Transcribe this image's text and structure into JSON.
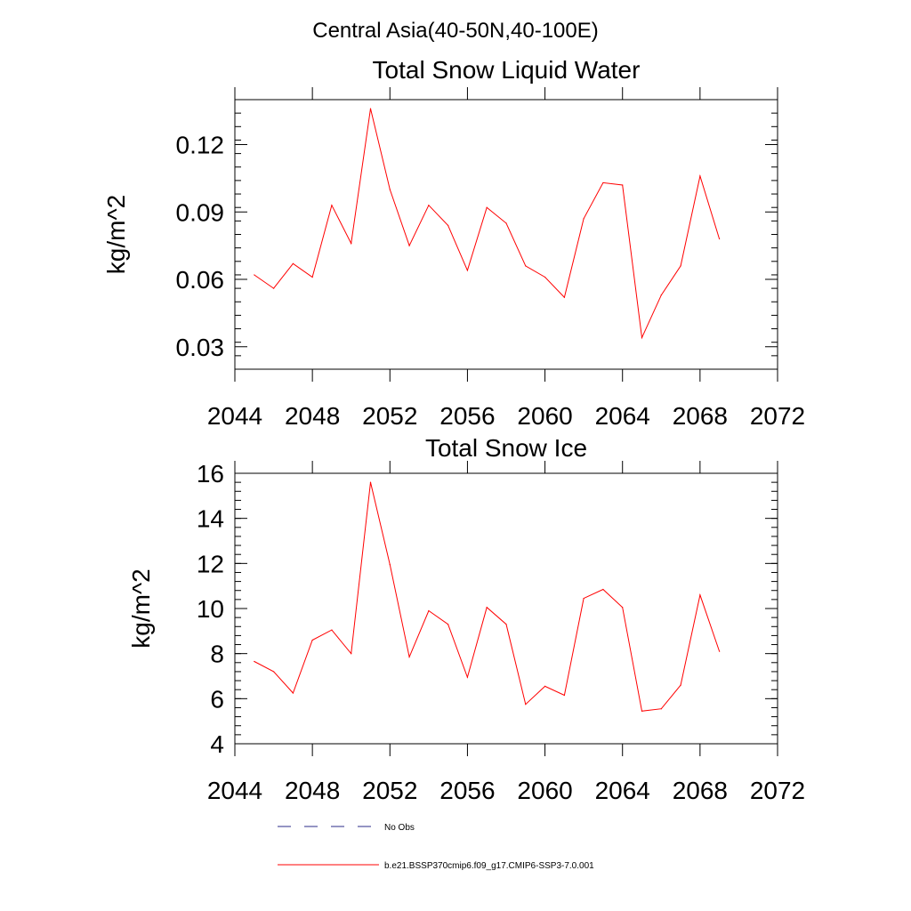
{
  "figure": {
    "title": "Central Asia(40-50N,40-100E)"
  },
  "legend": {
    "entries": [
      {
        "label": "No Obs",
        "color": "#2b2b8a",
        "style": "dashed"
      },
      {
        "label": "b.e21.BSSP370cmip6.f09_g17.CMIP6-SSP3-7.0.001",
        "color": "#ff0000",
        "style": "solid"
      }
    ]
  },
  "chart_data": [
    {
      "type": "line",
      "title": "Total Snow Liquid Water",
      "ylabel": "kg/m^2",
      "xlabel": "",
      "xlim": [
        2044,
        2072
      ],
      "ylim": [
        0.02,
        0.14
      ],
      "xticks": [
        2044,
        2048,
        2052,
        2056,
        2060,
        2064,
        2068,
        2072
      ],
      "xtick_labels": [
        "2044",
        "2048",
        "2052",
        "2056",
        "2060",
        "2064",
        "2068",
        "2072"
      ],
      "yticks": [
        0.03,
        0.06,
        0.09,
        0.12
      ],
      "ytick_labels": [
        "0.03",
        "0.06",
        "0.09",
        "0.12"
      ],
      "series": [
        {
          "name": "b.e21.BSSP370cmip6.f09_g17.CMIP6-SSP3-7.0.001",
          "color": "#ff0000",
          "x": [
            2045,
            2046,
            2047,
            2048,
            2049,
            2050,
            2051,
            2052,
            2053,
            2054,
            2055,
            2056,
            2057,
            2058,
            2059,
            2060,
            2061,
            2062,
            2063,
            2064,
            2065,
            2066,
            2067,
            2068,
            2069
          ],
          "values": [
            0.062,
            0.056,
            0.067,
            0.061,
            0.093,
            0.076,
            0.136,
            0.1,
            0.075,
            0.093,
            0.084,
            0.064,
            0.092,
            0.085,
            0.066,
            0.061,
            0.052,
            0.087,
            0.103,
            0.102,
            0.034,
            0.053,
            0.066,
            0.106,
            0.078
          ]
        }
      ]
    },
    {
      "type": "line",
      "title": "Total Snow Ice",
      "ylabel": "kg/m^2",
      "xlabel": "",
      "xlim": [
        2044,
        2072
      ],
      "ylim": [
        4,
        16
      ],
      "xticks": [
        2044,
        2048,
        2052,
        2056,
        2060,
        2064,
        2068,
        2072
      ],
      "xtick_labels": [
        "2044",
        "2048",
        "2052",
        "2056",
        "2060",
        "2064",
        "2068",
        "2072"
      ],
      "yticks": [
        4,
        6,
        8,
        10,
        12,
        14,
        16
      ],
      "ytick_labels": [
        "4",
        "6",
        "8",
        "10",
        "12",
        "14",
        "16"
      ],
      "series": [
        {
          "name": "b.e21.BSSP370cmip6.f09_g17.CMIP6-SSP3-7.0.001",
          "color": "#ff0000",
          "x": [
            2045,
            2046,
            2047,
            2048,
            2049,
            2050,
            2051,
            2052,
            2053,
            2054,
            2055,
            2056,
            2057,
            2058,
            2059,
            2060,
            2061,
            2062,
            2063,
            2064,
            2065,
            2066,
            2067,
            2068,
            2069
          ],
          "values": [
            7.65,
            7.2,
            6.25,
            8.6,
            9.05,
            8.0,
            15.6,
            11.95,
            7.85,
            9.9,
            9.3,
            6.95,
            10.05,
            9.3,
            5.75,
            6.55,
            6.15,
            10.45,
            10.85,
            10.05,
            5.45,
            5.55,
            6.6,
            10.6,
            8.1
          ]
        }
      ]
    }
  ]
}
